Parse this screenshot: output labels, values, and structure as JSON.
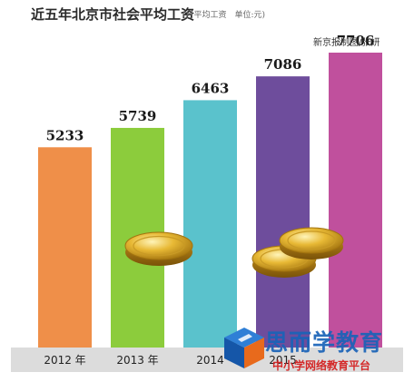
{
  "header": {
    "title": "近五年北京市社会平均工资",
    "subtitle": "(月平均工资　单位:元)",
    "credit": "新京报制图/张妍"
  },
  "watermark": {
    "name": "思而学教育",
    "tagline": "中小学网络教育平台"
  },
  "colors": {
    "bars": [
      "#ef8f49",
      "#8ccc3c",
      "#5ac2cc",
      "#6e4d9c",
      "#c0509d"
    ],
    "axis_band": "#dcdcdc",
    "coin": "#e6b830"
  },
  "chart_data": {
    "type": "bar",
    "categories": [
      "2012 年",
      "2013 年",
      "2014",
      "2015",
      ""
    ],
    "values": [
      5233,
      5739,
      6463,
      7086,
      7706
    ],
    "value_labels": [
      "5233",
      "5739",
      "6463",
      "7086",
      "7706"
    ],
    "title": "近五年北京市社会平均工资",
    "xlabel": "",
    "ylabel": "",
    "grid": false,
    "legend": "none"
  }
}
